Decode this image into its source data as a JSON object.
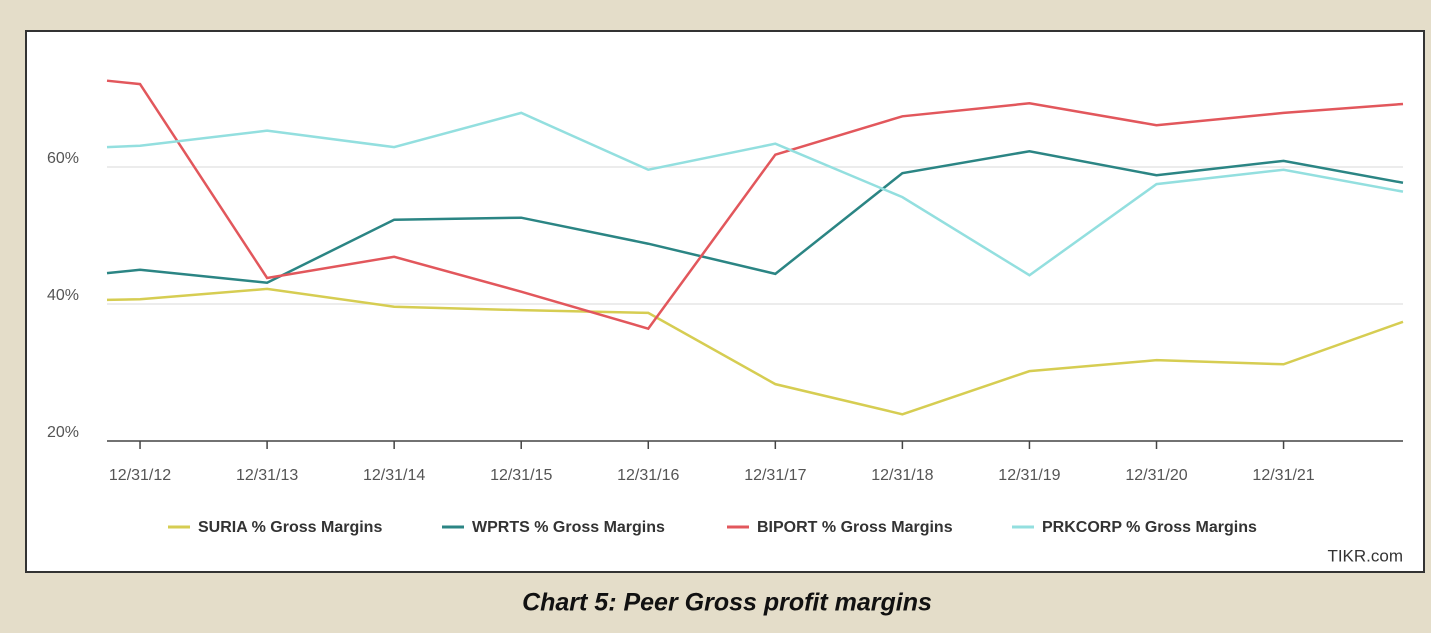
{
  "chart_data": {
    "type": "line",
    "caption": "Chart 5: Peer Gross profit margins",
    "source": "TIKR.com",
    "x": [
      2011.74,
      2012,
      2013,
      2014,
      2015,
      2016,
      2017,
      2018,
      2019,
      2020,
      2021,
      2021.94
    ],
    "xlim": [
      2011.74,
      2021.94
    ],
    "xticks": [
      {
        "value": 2012,
        "label": "12/31/12"
      },
      {
        "value": 2013,
        "label": "12/31/13"
      },
      {
        "value": 2014,
        "label": "12/31/14"
      },
      {
        "value": 2015,
        "label": "12/31/15"
      },
      {
        "value": 2016,
        "label": "12/31/16"
      },
      {
        "value": 2017,
        "label": "12/31/17"
      },
      {
        "value": 2018,
        "label": "12/31/18"
      },
      {
        "value": 2019,
        "label": "12/31/19"
      },
      {
        "value": 2020,
        "label": "12/31/20"
      },
      {
        "value": 2021,
        "label": "12/31/21"
      }
    ],
    "ylim": [
      20,
      78
    ],
    "yticks": [
      {
        "value": 20,
        "label": "20%"
      },
      {
        "value": 40,
        "label": "40%"
      },
      {
        "value": 60,
        "label": "60%"
      }
    ],
    "grid": true,
    "legend": "bottom",
    "series": [
      {
        "name": "SURIA % Gross Margins",
        "color": "#d6cd52",
        "values": [
          40.6,
          40.7,
          42.2,
          39.6,
          39.1,
          38.7,
          28.3,
          23.9,
          30.2,
          31.8,
          31.2,
          37.4
        ]
      },
      {
        "name": "WPRTS % Gross Margins",
        "color": "#2b8584",
        "values": [
          44.5,
          45.0,
          43.1,
          52.3,
          52.6,
          48.8,
          44.4,
          59.1,
          62.3,
          58.8,
          60.9,
          57.7
        ]
      },
      {
        "name": "BIPORT % Gross Margins",
        "color": "#e2575c",
        "values": [
          72.6,
          72.1,
          43.8,
          46.9,
          41.8,
          36.4,
          61.8,
          67.4,
          69.3,
          66.1,
          67.9,
          69.2
        ]
      },
      {
        "name": "PRKCORP % Gross Margins",
        "color": "#93dfdf",
        "values": [
          62.9,
          63.1,
          65.3,
          62.9,
          67.9,
          59.6,
          63.4,
          55.6,
          44.2,
          57.5,
          59.6,
          56.4
        ]
      }
    ]
  }
}
